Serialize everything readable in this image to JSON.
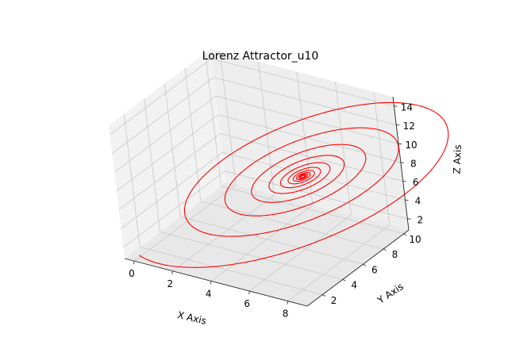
{
  "chart_data": {
    "type": "line",
    "projection": "3d",
    "title": "Lorenz Attractor_u10",
    "xlabel": "X Axis",
    "ylabel": "Y Axis",
    "zlabel": "Z Axis",
    "xlim": [
      -0.5,
      9.0
    ],
    "ylim": [
      0.5,
      10.5
    ],
    "zlim": [
      0.8,
      15.0
    ],
    "x_ticks": [
      "0",
      "2",
      "4",
      "6",
      "8"
    ],
    "y_ticks": [
      "2",
      "4",
      "6",
      "8",
      "10"
    ],
    "z_ticks": [
      "2",
      "4",
      "6",
      "8",
      "10",
      "12",
      "14"
    ],
    "grid": true,
    "series": [
      {
        "color": "#ff0000",
        "description": "Damped spiral converging toward a fixed point near (x≈6.2, y≈6.2, z≈8.5), starting near (0, 1, 1)",
        "start": [
          0,
          1,
          1
        ],
        "fixed_point": [
          6.2,
          6.2,
          8.5
        ],
        "loops": 11
      }
    ]
  }
}
